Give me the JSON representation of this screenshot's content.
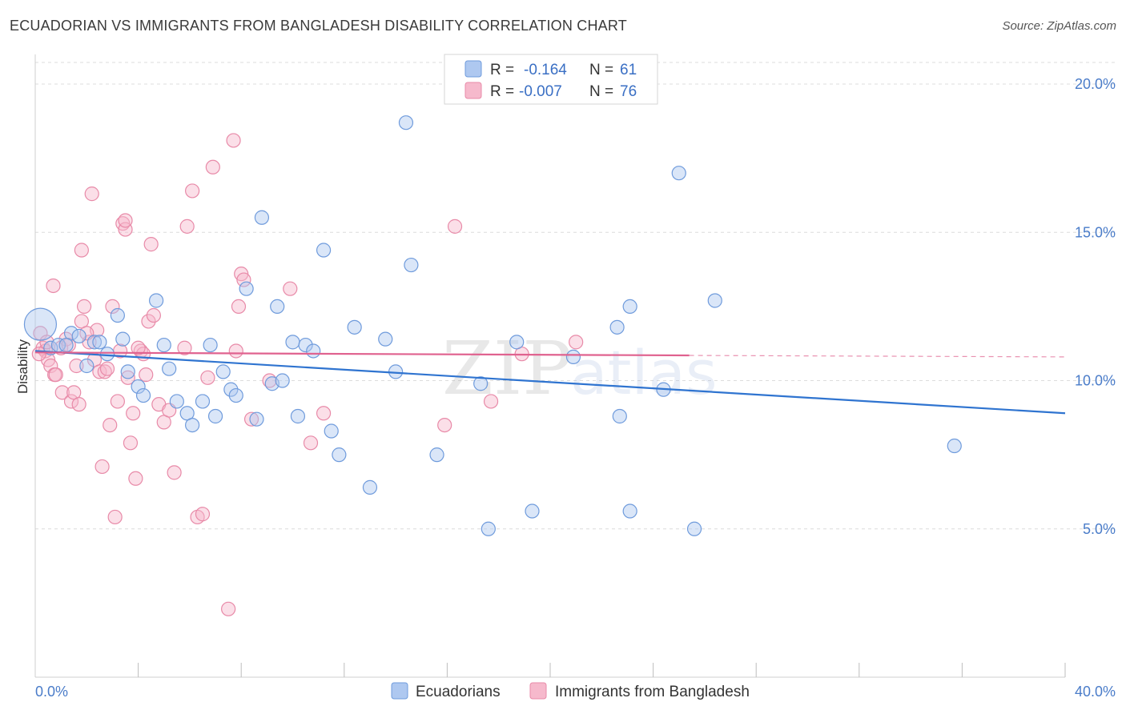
{
  "title": "ECUADORIAN VS IMMIGRANTS FROM BANGLADESH DISABILITY CORRELATION CHART",
  "source": "Source: ZipAtlas.com",
  "watermark": {
    "zip": "ZIP",
    "atlas": "atlas"
  },
  "legend": {
    "r_label": "R =",
    "n_label": "N =",
    "series": [
      {
        "r": "-0.164",
        "n": "61"
      },
      {
        "r": "-0.007",
        "n": "76"
      }
    ]
  },
  "bottom_legend": [
    "Ecuadorians",
    "Immigrants from Bangladesh"
  ],
  "colors": {
    "blue_fill": "#aec8f0",
    "blue_stroke": "#6f9bdc",
    "blue_line": "#2f74d0",
    "pink_fill": "#f6b9cc",
    "pink_stroke": "#e88aa8",
    "pink_line": "#e0628f",
    "axis_text": "#4a7cc9",
    "grid": "#dcdcdc"
  },
  "chart_data": {
    "type": "scatter",
    "xlabel": "",
    "ylabel": "Disability",
    "xlim": [
      0,
      40
    ],
    "ylim": [
      0,
      21
    ],
    "x_ticks": [
      "0.0%",
      "40.0%"
    ],
    "y_ticks": [
      {
        "v": 5,
        "label": "5.0%"
      },
      {
        "v": 10,
        "label": "10.0%"
      },
      {
        "v": 15,
        "label": "15.0%"
      },
      {
        "v": 20,
        "label": "20.0%"
      }
    ],
    "grid": true,
    "legend_position": "top-center",
    "series": [
      {
        "name": "Ecuadorians",
        "trend": {
          "x0": 0,
          "y0": 11.0,
          "x1": 40,
          "y1": 8.9
        },
        "points": [
          [
            0.2,
            11.9
          ],
          [
            0.6,
            11.1
          ],
          [
            0.9,
            11.2
          ],
          [
            1.4,
            11.6
          ],
          [
            1.7,
            11.5
          ],
          [
            2.0,
            10.5
          ],
          [
            2.3,
            11.3
          ],
          [
            2.5,
            11.3
          ],
          [
            2.8,
            10.9
          ],
          [
            3.2,
            12.2
          ],
          [
            3.4,
            11.4
          ],
          [
            3.6,
            10.3
          ],
          [
            4.0,
            9.8
          ],
          [
            4.2,
            9.5
          ],
          [
            4.7,
            12.7
          ],
          [
            5.0,
            11.2
          ],
          [
            5.2,
            10.4
          ],
          [
            5.5,
            9.3
          ],
          [
            5.9,
            8.9
          ],
          [
            6.1,
            8.5
          ],
          [
            6.5,
            9.3
          ],
          [
            6.8,
            11.2
          ],
          [
            7.0,
            8.8
          ],
          [
            7.3,
            10.3
          ],
          [
            7.6,
            9.7
          ],
          [
            7.8,
            9.5
          ],
          [
            8.2,
            13.1
          ],
          [
            8.6,
            8.7
          ],
          [
            8.8,
            15.5
          ],
          [
            9.2,
            9.9
          ],
          [
            9.4,
            12.5
          ],
          [
            9.6,
            10.0
          ],
          [
            10.0,
            11.3
          ],
          [
            10.2,
            8.8
          ],
          [
            10.5,
            11.2
          ],
          [
            10.8,
            11.0
          ],
          [
            11.2,
            14.4
          ],
          [
            11.5,
            8.3
          ],
          [
            11.8,
            7.5
          ],
          [
            12.4,
            11.8
          ],
          [
            13.0,
            6.4
          ],
          [
            13.6,
            11.4
          ],
          [
            14.0,
            10.3
          ],
          [
            14.4,
            18.7
          ],
          [
            14.6,
            13.9
          ],
          [
            15.6,
            7.5
          ],
          [
            17.3,
            9.9
          ],
          [
            17.6,
            5.0
          ],
          [
            18.7,
            11.3
          ],
          [
            19.3,
            5.6
          ],
          [
            20.9,
            10.8
          ],
          [
            22.6,
            11.8
          ],
          [
            22.7,
            8.8
          ],
          [
            23.1,
            5.6
          ],
          [
            23.1,
            12.5
          ],
          [
            24.4,
            9.7
          ],
          [
            25.0,
            17.0
          ],
          [
            25.6,
            5.0
          ],
          [
            26.4,
            12.7
          ],
          [
            35.7,
            7.8
          ],
          [
            1.2,
            11.2
          ]
        ]
      },
      {
        "name": "Immigrants from Bangladesh",
        "trend": {
          "x0": 0,
          "y0": 10.95,
          "x1": 25.4,
          "y1": 10.85,
          "dash_x1": 40,
          "dash_y1": 10.8
        },
        "points": [
          [
            0.2,
            11.6
          ],
          [
            0.3,
            11.1
          ],
          [
            0.4,
            11.0
          ],
          [
            0.5,
            10.7
          ],
          [
            0.6,
            10.5
          ],
          [
            0.7,
            13.2
          ],
          [
            0.75,
            10.2
          ],
          [
            0.8,
            10.2
          ],
          [
            1.0,
            11.1
          ],
          [
            1.05,
            9.6
          ],
          [
            1.2,
            11.4
          ],
          [
            1.4,
            9.3
          ],
          [
            1.5,
            9.6
          ],
          [
            1.6,
            10.5
          ],
          [
            1.7,
            9.2
          ],
          [
            1.8,
            12.0
          ],
          [
            1.8,
            14.4
          ],
          [
            1.9,
            12.5
          ],
          [
            2.1,
            11.3
          ],
          [
            2.2,
            16.3
          ],
          [
            2.3,
            10.7
          ],
          [
            2.4,
            11.7
          ],
          [
            2.5,
            10.3
          ],
          [
            2.6,
            7.1
          ],
          [
            2.7,
            10.3
          ],
          [
            2.8,
            10.4
          ],
          [
            2.9,
            8.5
          ],
          [
            3.0,
            12.5
          ],
          [
            3.1,
            5.4
          ],
          [
            3.2,
            9.3
          ],
          [
            3.4,
            15.3
          ],
          [
            3.5,
            15.1
          ],
          [
            3.5,
            15.4
          ],
          [
            3.6,
            10.1
          ],
          [
            3.7,
            7.9
          ],
          [
            3.8,
            8.9
          ],
          [
            3.9,
            6.7
          ],
          [
            4.1,
            11.0
          ],
          [
            4.2,
            10.9
          ],
          [
            4.3,
            10.2
          ],
          [
            4.4,
            12.0
          ],
          [
            4.5,
            14.6
          ],
          [
            4.6,
            12.2
          ],
          [
            4.8,
            9.2
          ],
          [
            5.0,
            8.6
          ],
          [
            5.2,
            9.0
          ],
          [
            5.4,
            6.9
          ],
          [
            5.8,
            11.1
          ],
          [
            5.9,
            15.2
          ],
          [
            6.1,
            16.4
          ],
          [
            6.3,
            5.4
          ],
          [
            6.5,
            5.5
          ],
          [
            6.7,
            10.1
          ],
          [
            6.9,
            17.2
          ],
          [
            7.5,
            2.3
          ],
          [
            7.7,
            18.1
          ],
          [
            7.8,
            11.0
          ],
          [
            7.9,
            12.5
          ],
          [
            8.0,
            13.6
          ],
          [
            8.1,
            13.4
          ],
          [
            8.4,
            8.7
          ],
          [
            9.1,
            10.0
          ],
          [
            9.9,
            13.1
          ],
          [
            10.7,
            7.9
          ],
          [
            11.2,
            8.9
          ],
          [
            15.9,
            8.5
          ],
          [
            16.3,
            15.2
          ],
          [
            17.7,
            9.3
          ],
          [
            18.9,
            10.9
          ],
          [
            21.0,
            11.3
          ],
          [
            0.15,
            10.9
          ],
          [
            0.45,
            11.3
          ],
          [
            1.3,
            11.2
          ],
          [
            2.0,
            11.6
          ],
          [
            3.3,
            11.0
          ],
          [
            4.0,
            11.1
          ]
        ]
      }
    ]
  }
}
